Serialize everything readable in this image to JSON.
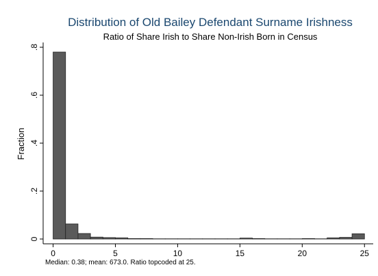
{
  "chart_data": {
    "type": "histogram",
    "title": "Distribution of Old Bailey Defendant Surname Irishness",
    "subtitle": "Ratio of Share Irish to Share Non-Irish Born in Census",
    "y_label": "Fraction",
    "note": "Median: 0.38; mean: 673.0. Ratio topcoded at 25.",
    "bins": [
      0,
      1,
      2,
      3,
      4,
      5,
      6,
      7,
      8,
      9,
      10,
      11,
      12,
      13,
      14,
      15,
      16,
      17,
      18,
      19,
      20,
      21,
      22,
      23,
      24,
      25
    ],
    "counts": [
      0.78,
      0.063,
      0.023,
      0.008,
      0.006,
      0.005,
      0.002,
      0.002,
      0.001,
      0.001,
      0.001,
      0.001,
      0.001,
      0.001,
      0.001,
      0.004,
      0.002,
      0.001,
      0.001,
      0.001,
      0.002,
      0.001,
      0.005,
      0.007,
      0.022
    ],
    "color": "#5a5a5a",
    "xlim": [
      -0.8,
      25.7
    ],
    "xticks": [
      0,
      5,
      10,
      15,
      20,
      25
    ],
    "ylim": [
      -0.02,
      0.82
    ],
    "yticks": [
      0,
      {
        "value": 0.2,
        "label": ".2"
      },
      {
        "value": 0.4,
        "label": ".4"
      },
      {
        "value": 0.6,
        "label": ".6"
      },
      {
        "value": 0.8,
        "label": ".8"
      }
    ]
  }
}
